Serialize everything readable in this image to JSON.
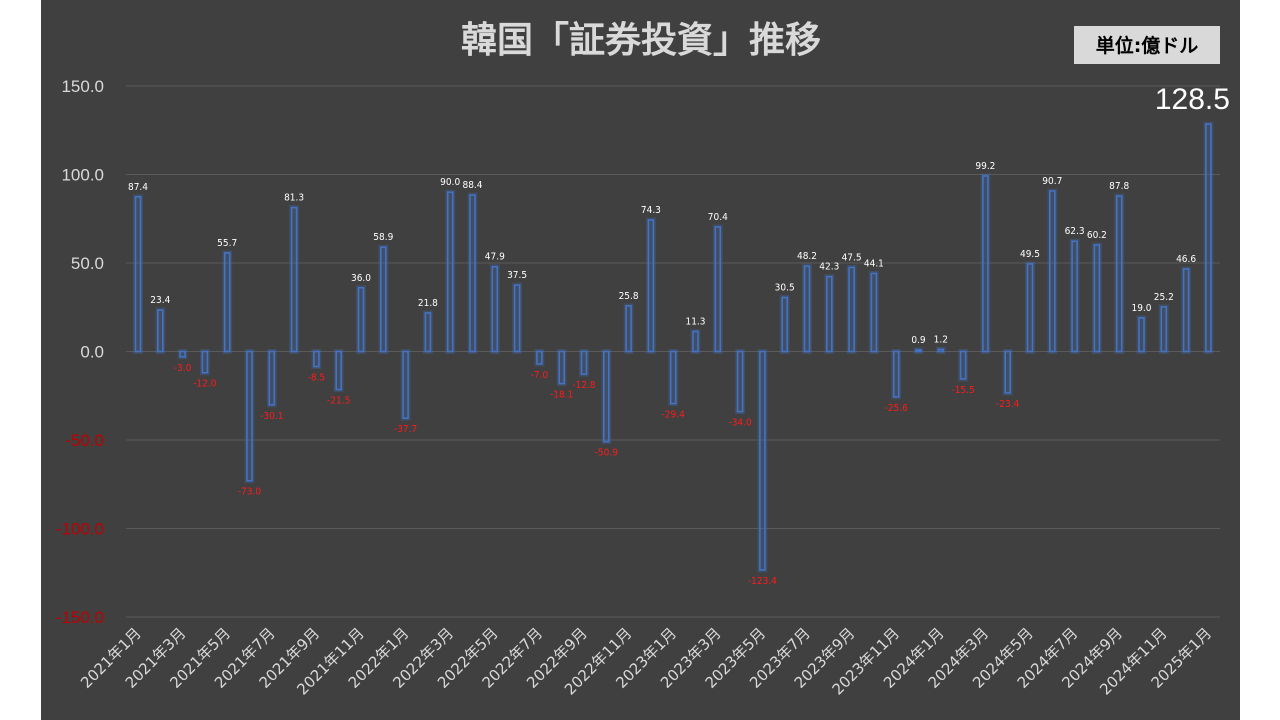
{
  "unit_label": "単位:億ドル",
  "chart_data": {
    "type": "bar",
    "title": "韓国「証券投資」推移",
    "xlabel": "",
    "ylabel": "",
    "ylim": [
      -150,
      150
    ],
    "y_ticks": [
      "150.0",
      "100.0",
      "50.0",
      "0.0",
      "-50.0",
      "-100.0",
      "-150.0"
    ],
    "grid": true,
    "legend": "none",
    "colors": {
      "bar": "#4472c4",
      "positive_label": "#ffffff",
      "negative_label": "#ff1a1a",
      "negative_tick": "#c00000",
      "background": "#404040"
    },
    "categories": [
      "2021年1月",
      "2021年2月",
      "2021年3月",
      "2021年4月",
      "2021年5月",
      "2021年6月",
      "2021年7月",
      "2021年8月",
      "2021年9月",
      "2021年10月",
      "2021年11月",
      "2021年12月",
      "2022年1月",
      "2022年2月",
      "2022年3月",
      "2022年4月",
      "2022年5月",
      "2022年6月",
      "2022年7月",
      "2022年8月",
      "2022年9月",
      "2022年10月",
      "2022年11月",
      "2022年12月",
      "2023年1月",
      "2023年2月",
      "2023年3月",
      "2023年4月",
      "2023年5月",
      "2023年6月",
      "2023年7月",
      "2023年8月",
      "2023年9月",
      "2023年10月",
      "2023年11月",
      "2023年12月",
      "2024年1月",
      "2024年2月",
      "2024年3月",
      "2024年4月",
      "2024年5月",
      "2024年6月",
      "2024年7月",
      "2024年8月",
      "2024年9月",
      "2024年10月",
      "2024年11月",
      "2024年12月",
      "2025年1月"
    ],
    "x_tick_labels": [
      "2021年1月",
      "2021年3月",
      "2021年5月",
      "2021年7月",
      "2021年9月",
      "2021年11月",
      "2022年1月",
      "2022年3月",
      "2022年5月",
      "2022年7月",
      "2022年9月",
      "2022年11月",
      "2023年1月",
      "2023年3月",
      "2023年5月",
      "2023年7月",
      "2023年9月",
      "2023年11月",
      "2024年1月",
      "2024年3月",
      "2024年5月",
      "2024年7月",
      "2024年9月",
      "2024年11月",
      "2025年1月"
    ],
    "values": [
      87.4,
      23.4,
      -3.0,
      -12.0,
      55.7,
      -73.0,
      -30.1,
      81.3,
      -8.5,
      -21.5,
      36.0,
      58.9,
      -37.7,
      21.8,
      90.0,
      88.4,
      47.9,
      37.5,
      -7.0,
      -18.1,
      -12.8,
      -50.9,
      25.8,
      74.3,
      -29.4,
      11.3,
      70.4,
      -34.0,
      -123.4,
      30.5,
      48.2,
      42.3,
      47.5,
      44.1,
      -25.6,
      0.9,
      1.2,
      -15.5,
      99.2,
      -23.4,
      49.5,
      90.7,
      62.3,
      60.2,
      87.8,
      19.0,
      25.2,
      46.6,
      128.5
    ],
    "value_labels": [
      "87.4",
      "23.4",
      "-3.0",
      "-12.0",
      "55.7",
      "-73.0",
      "-30.1",
      "81.3",
      "-8.5",
      "-21.5",
      "36.0",
      "58.9",
      "-37.7",
      "21.8",
      "90.0",
      "88.4",
      "47.9",
      "37.5",
      "-7.0",
      "-18.1",
      "-12.8",
      "-50.9",
      "25.8",
      "74.3",
      "-29.4",
      "11.3",
      "70.4",
      "-34.0",
      "-123.4",
      "30.5",
      "48.2",
      "42.3",
      "47.5",
      "44.1",
      "-25.6",
      "0.9",
      "1.2",
      "-15.5",
      "99.2",
      "-23.4",
      "49.5",
      "90.7",
      "62.3",
      "60.2",
      "87.8",
      "19.0",
      "25.2",
      "46.6",
      "128.5"
    ]
  }
}
